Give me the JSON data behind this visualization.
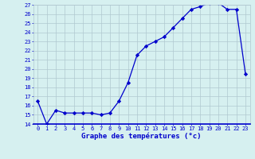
{
  "hours": [
    0,
    1,
    2,
    3,
    4,
    5,
    6,
    7,
    8,
    9,
    10,
    11,
    12,
    13,
    14,
    15,
    16,
    17,
    18,
    19,
    20,
    21,
    22,
    23
  ],
  "temperatures": [
    16.5,
    14.0,
    15.5,
    15.2,
    15.2,
    15.2,
    15.2,
    15.0,
    15.2,
    16.5,
    18.5,
    21.5,
    22.5,
    23.0,
    23.5,
    24.5,
    25.5,
    26.5,
    26.8,
    27.2,
    27.2,
    26.5,
    26.5,
    19.5
  ],
  "ylim": [
    14,
    27
  ],
  "yticks": [
    14,
    15,
    16,
    17,
    18,
    19,
    20,
    21,
    22,
    23,
    24,
    25,
    26,
    27
  ],
  "line_color": "#0000cc",
  "marker": "D",
  "marker_size": 2.2,
  "bg_color": "#d6f0f0",
  "grid_color": "#b0c8d0",
  "xlabel": "Graphe des températures (°c)",
  "xlabel_color": "#0000cc",
  "tick_color": "#0000cc",
  "tick_fontsize": 5.0,
  "xlabel_fontsize": 6.5
}
